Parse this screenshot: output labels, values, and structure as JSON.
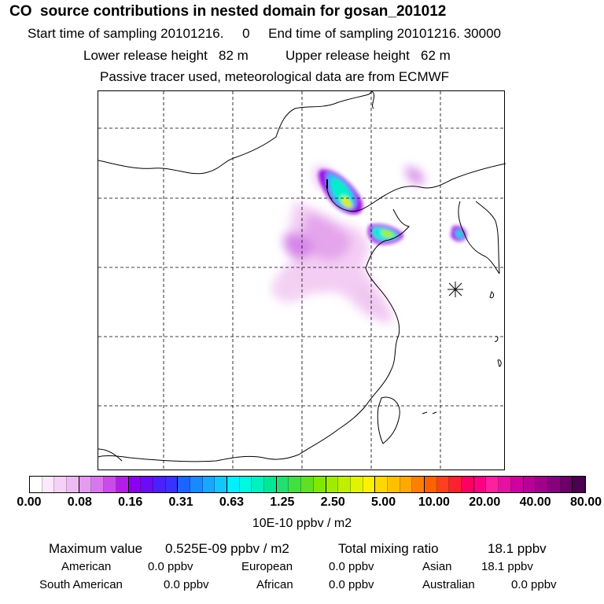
{
  "header": {
    "title": "CO  source contributions in nested domain for gosan_201012",
    "line2": "Start time of sampling 20101216.     0     End time of sampling 20101216. 30000",
    "line3": "Lower release height   82 m          Upper release height   62 m",
    "line4": "Passive tracer used, meteorological data are from ECMWF"
  },
  "colorbar": {
    "ticks": [
      "0.00",
      "0.08",
      "0.16",
      "0.31",
      "0.63",
      "1.25",
      "2.50",
      "5.00",
      "10.00",
      "20.00",
      "40.00",
      "80.00"
    ],
    "unit": "10E-10 ppbv / m2",
    "colors": [
      "#ffffff",
      "#fbe8fb",
      "#f5d0f7",
      "#eebaf3",
      "#e39cef",
      "#d877ec",
      "#c94cea",
      "#b21ee8",
      "#8a00f0",
      "#6a0cf7",
      "#4c20fb",
      "#3a30ff",
      "#1c64ff",
      "#1a88ff",
      "#18a8ff",
      "#10c8ff",
      "#00f0ff",
      "#00f8e0",
      "#00f0c0",
      "#00e896",
      "#20e070",
      "#40e040",
      "#60e020",
      "#80e800",
      "#a0ec00",
      "#c0f000",
      "#e0f400",
      "#fff000",
      "#ffd800",
      "#ffc000",
      "#ffa800",
      "#ff8000",
      "#ff6000",
      "#ff4020",
      "#ff2030",
      "#ff0060",
      "#ff0080",
      "#ff20a0",
      "#e810a0",
      "#d000a0",
      "#b80098",
      "#a0008a",
      "#88007c",
      "#6a0068",
      "#4c0050"
    ]
  },
  "summary": {
    "max_label": "Maximum value",
    "max_value": "0.525E-09 ppbv / m2",
    "total_label": "Total mixing ratio",
    "total_value": "18.1 ppbv",
    "american_label": "American",
    "american_value": "0.0 ppbv",
    "european_label": "European",
    "european_value": "0.0 ppbv",
    "asian_label": "Asian",
    "asian_value": "18.1 ppbv",
    "southamerican_label": "South American",
    "southamerican_value": "0.0 ppbv",
    "african_label": "African",
    "african_value": "0.0 ppbv",
    "australian_label": "Australian",
    "australian_value": "0.0 ppbv"
  }
}
